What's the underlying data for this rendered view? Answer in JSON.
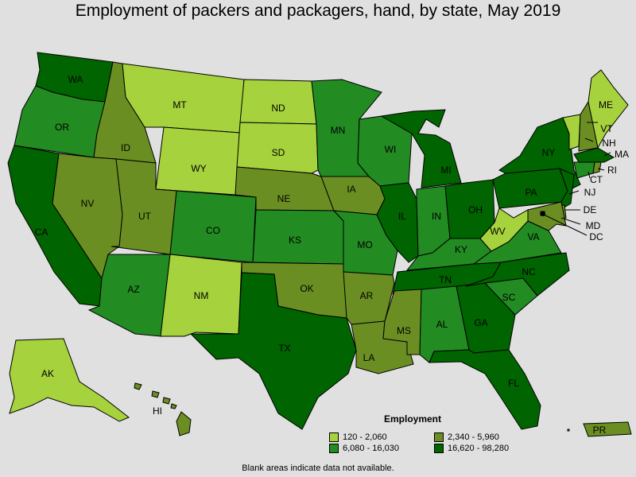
{
  "title": "Employment of packers and packagers, hand, by state, May 2019",
  "footnote": "Blank areas indicate data not available.",
  "legend": {
    "title": "Employment",
    "items": [
      {
        "label": "120 - 2,060",
        "color": "#a6d23d"
      },
      {
        "label": "2,340 - 5,960",
        "color": "#6b8e23"
      },
      {
        "label": "6,080 - 16,030",
        "color": "#228b22"
      },
      {
        "label": "16,620 - 98,280",
        "color": "#006400"
      }
    ]
  },
  "states": [
    {
      "abbr": "WA",
      "bin": 3
    },
    {
      "abbr": "OR",
      "bin": 2
    },
    {
      "abbr": "CA",
      "bin": 3
    },
    {
      "abbr": "ID",
      "bin": 1
    },
    {
      "abbr": "NV",
      "bin": 1
    },
    {
      "abbr": "MT",
      "bin": 0
    },
    {
      "abbr": "WY",
      "bin": 0
    },
    {
      "abbr": "UT",
      "bin": 1
    },
    {
      "abbr": "AZ",
      "bin": 2
    },
    {
      "abbr": "CO",
      "bin": 2
    },
    {
      "abbr": "NM",
      "bin": 0
    },
    {
      "abbr": "ND",
      "bin": 0
    },
    {
      "abbr": "SD",
      "bin": 0
    },
    {
      "abbr": "NE",
      "bin": 1
    },
    {
      "abbr": "KS",
      "bin": 2
    },
    {
      "abbr": "OK",
      "bin": 1
    },
    {
      "abbr": "TX",
      "bin": 3
    },
    {
      "abbr": "MN",
      "bin": 2
    },
    {
      "abbr": "IA",
      "bin": 1
    },
    {
      "abbr": "MO",
      "bin": 2
    },
    {
      "abbr": "AR",
      "bin": 1
    },
    {
      "abbr": "LA",
      "bin": 1
    },
    {
      "abbr": "WI",
      "bin": 2
    },
    {
      "abbr": "IL",
      "bin": 3
    },
    {
      "abbr": "MI",
      "bin": 3
    },
    {
      "abbr": "IN",
      "bin": 2
    },
    {
      "abbr": "OH",
      "bin": 3
    },
    {
      "abbr": "KY",
      "bin": 2
    },
    {
      "abbr": "TN",
      "bin": 3
    },
    {
      "abbr": "MS",
      "bin": 1
    },
    {
      "abbr": "AL",
      "bin": 2
    },
    {
      "abbr": "GA",
      "bin": 3
    },
    {
      "abbr": "FL",
      "bin": 3
    },
    {
      "abbr": "SC",
      "bin": 2
    },
    {
      "abbr": "NC",
      "bin": 3
    },
    {
      "abbr": "VA",
      "bin": 2
    },
    {
      "abbr": "WV",
      "bin": 0
    },
    {
      "abbr": "PA",
      "bin": 3
    },
    {
      "abbr": "NY",
      "bin": 3
    },
    {
      "abbr": "ME",
      "bin": 0
    },
    {
      "abbr": "VT",
      "bin": 0
    },
    {
      "abbr": "NH",
      "bin": 1
    },
    {
      "abbr": "MA",
      "bin": 3
    },
    {
      "abbr": "RI",
      "bin": 1
    },
    {
      "abbr": "CT",
      "bin": 2
    },
    {
      "abbr": "NJ",
      "bin": 3
    },
    {
      "abbr": "DE",
      "bin": 1
    },
    {
      "abbr": "MD",
      "bin": 1
    },
    {
      "abbr": "DC",
      "bin": 1
    },
    {
      "abbr": "AK",
      "bin": 0
    },
    {
      "abbr": "HI",
      "bin": 1
    },
    {
      "abbr": "PR",
      "bin": 1
    }
  ]
}
